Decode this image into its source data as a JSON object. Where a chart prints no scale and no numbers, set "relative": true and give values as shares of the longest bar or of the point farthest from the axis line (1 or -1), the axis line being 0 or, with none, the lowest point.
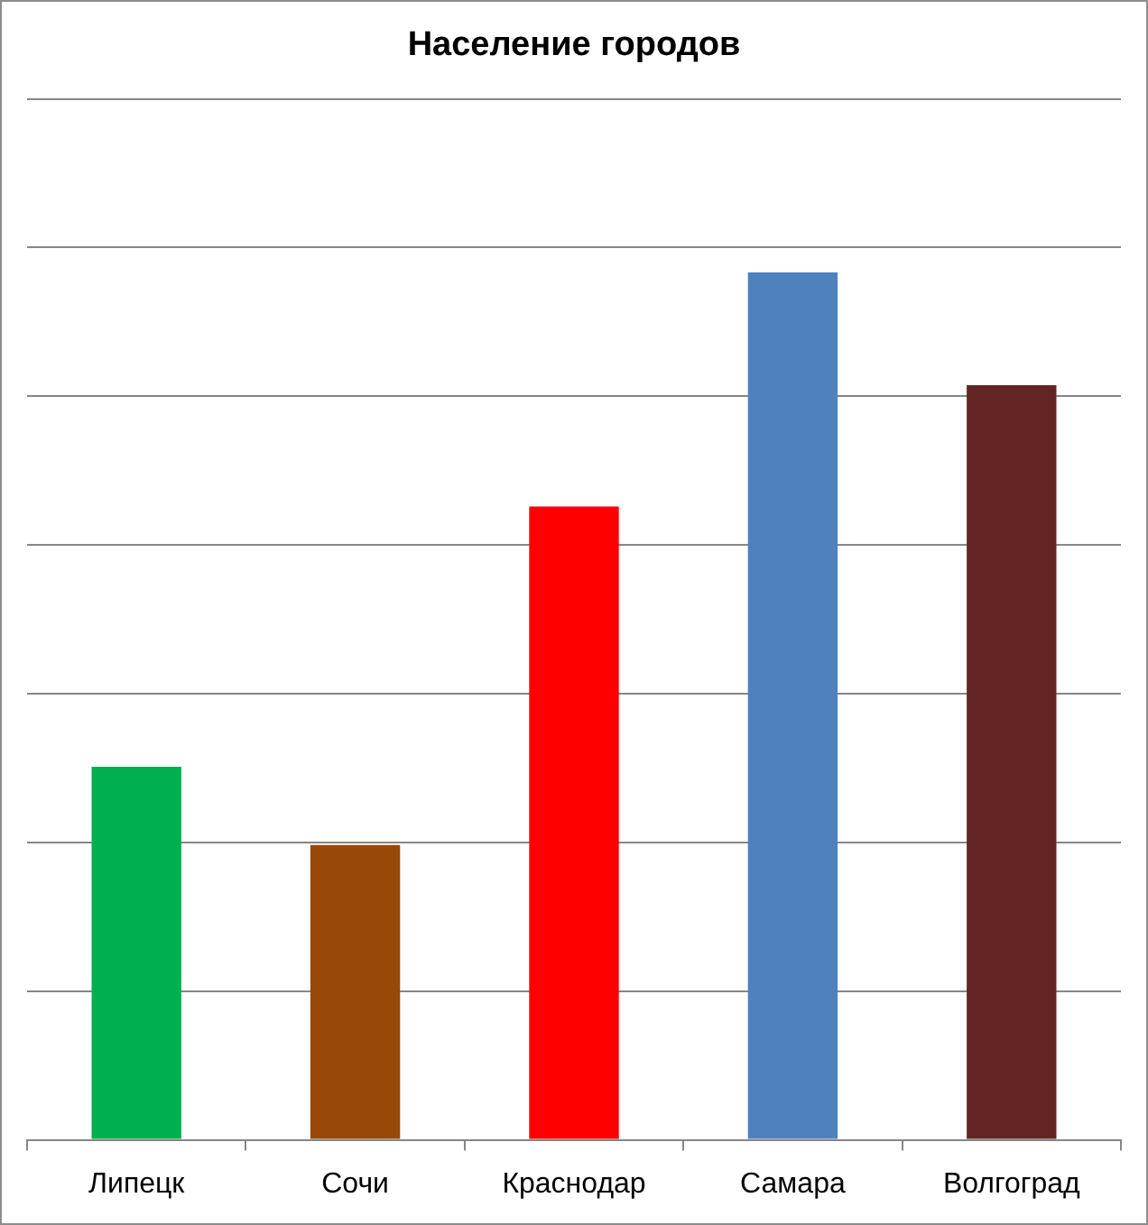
{
  "chart_data": {
    "type": "bar",
    "title": "Население городов",
    "categories": [
      "Липецк",
      "Сочи",
      "Краснодар",
      "Самара",
      "Волгоград"
    ],
    "values": [
      0.43,
      0.34,
      0.73,
      1,
      0.87
    ],
    "colors": [
      "#00b050",
      "#984807",
      "#ff0000",
      "#4f81bd",
      "#632523"
    ],
    "relative": true,
    "grid": "y"
  }
}
